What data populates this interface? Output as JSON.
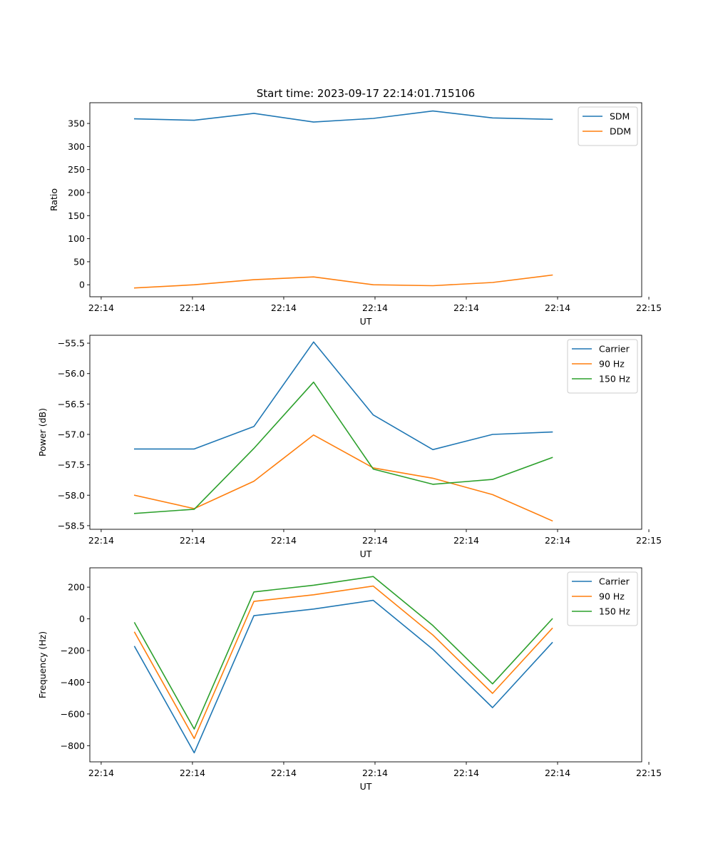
{
  "figure_title": "Start time: 2023-09-17 22:14:01.715106",
  "chart_data": [
    {
      "type": "line",
      "title": "Start time: 2023-09-17 22:14:01.715106",
      "xlabel": "UT",
      "ylabel": "Ratio",
      "x": [
        0,
        1,
        2,
        3,
        4,
        5,
        6,
        7
      ],
      "xlim": [
        -0.75,
        8.5
      ],
      "x_ticks": [
        -0.56,
        0.97,
        2.5,
        4.03,
        5.56,
        7.09,
        8.62
      ],
      "x_tick_labels": [
        "22:14",
        "22:14",
        "22:14",
        "22:14",
        "22:14",
        "22:14",
        "22:15"
      ],
      "ylim": [
        -26,
        395
      ],
      "y_ticks": [
        0,
        50,
        100,
        150,
        200,
        250,
        300,
        350
      ],
      "y_tick_labels": [
        "0",
        "50",
        "100",
        "150",
        "200",
        "250",
        "300",
        "350"
      ],
      "legend_position": "top-right",
      "series": [
        {
          "name": "SDM",
          "color": "#1f77b4",
          "values": [
            360,
            357,
            372,
            353,
            361,
            377,
            362,
            359
          ]
        },
        {
          "name": "DDM",
          "color": "#ff7f0e",
          "values": [
            -7,
            0,
            11,
            17,
            0,
            -2,
            5,
            21
          ]
        }
      ]
    },
    {
      "type": "line",
      "title": "",
      "xlabel": "UT",
      "ylabel": "Power (dB)",
      "x": [
        0,
        1,
        2,
        3,
        4,
        5,
        6,
        7
      ],
      "xlim": [
        -0.75,
        8.5
      ],
      "x_ticks": [
        -0.56,
        0.97,
        2.5,
        4.03,
        5.56,
        7.09,
        8.62
      ],
      "x_tick_labels": [
        "22:14",
        "22:14",
        "22:14",
        "22:14",
        "22:14",
        "22:14",
        "22:15"
      ],
      "ylim": [
        -58.56,
        -55.37
      ],
      "y_ticks": [
        -58.5,
        -58.0,
        -57.5,
        -57.0,
        -56.5,
        -56.0,
        -55.5
      ],
      "y_tick_labels": [
        "−58.5",
        "−58.0",
        "−57.5",
        "−57.0",
        "−56.5",
        "−56.0",
        "−55.5"
      ],
      "legend_position": "top-right",
      "series": [
        {
          "name": "Carrier",
          "color": "#1f77b4",
          "values": [
            -57.24,
            -57.24,
            -56.87,
            -55.48,
            -56.68,
            -57.25,
            -57.0,
            -56.96
          ]
        },
        {
          "name": "90 Hz",
          "color": "#ff7f0e",
          "values": [
            -58.0,
            -58.22,
            -57.77,
            -57.01,
            -57.55,
            -57.72,
            -57.99,
            -58.42
          ]
        },
        {
          "name": "150 Hz",
          "color": "#2ca02c",
          "values": [
            -58.3,
            -58.23,
            -57.23,
            -56.14,
            -57.57,
            -57.82,
            -57.74,
            -57.38
          ]
        }
      ]
    },
    {
      "type": "line",
      "title": "",
      "xlabel": "UT",
      "ylabel": "Frequency (Hz)",
      "x": [
        0,
        1,
        2,
        3,
        4,
        5,
        6,
        7
      ],
      "xlim": [
        -0.75,
        8.5
      ],
      "x_ticks": [
        -0.56,
        0.97,
        2.5,
        4.03,
        5.56,
        7.09,
        8.62
      ],
      "x_tick_labels": [
        "22:14",
        "22:14",
        "22:14",
        "22:14",
        "22:14",
        "22:14",
        "22:15"
      ],
      "ylim": [
        -902,
        322
      ],
      "y_ticks": [
        -800,
        -600,
        -400,
        -200,
        0,
        200
      ],
      "y_tick_labels": [
        "−800",
        "−600",
        "−400",
        "−200",
        "0",
        "200"
      ],
      "legend_position": "top-right",
      "series": [
        {
          "name": "Carrier",
          "color": "#1f77b4",
          "values": [
            -175,
            -845,
            20,
            62,
            117,
            -192,
            -560,
            -150
          ]
        },
        {
          "name": "90 Hz",
          "color": "#ff7f0e",
          "values": [
            -85,
            -755,
            110,
            152,
            207,
            -102,
            -470,
            -60
          ]
        },
        {
          "name": "150 Hz",
          "color": "#2ca02c",
          "values": [
            -25,
            -695,
            170,
            212,
            267,
            -42,
            -410,
            0
          ]
        }
      ]
    }
  ]
}
